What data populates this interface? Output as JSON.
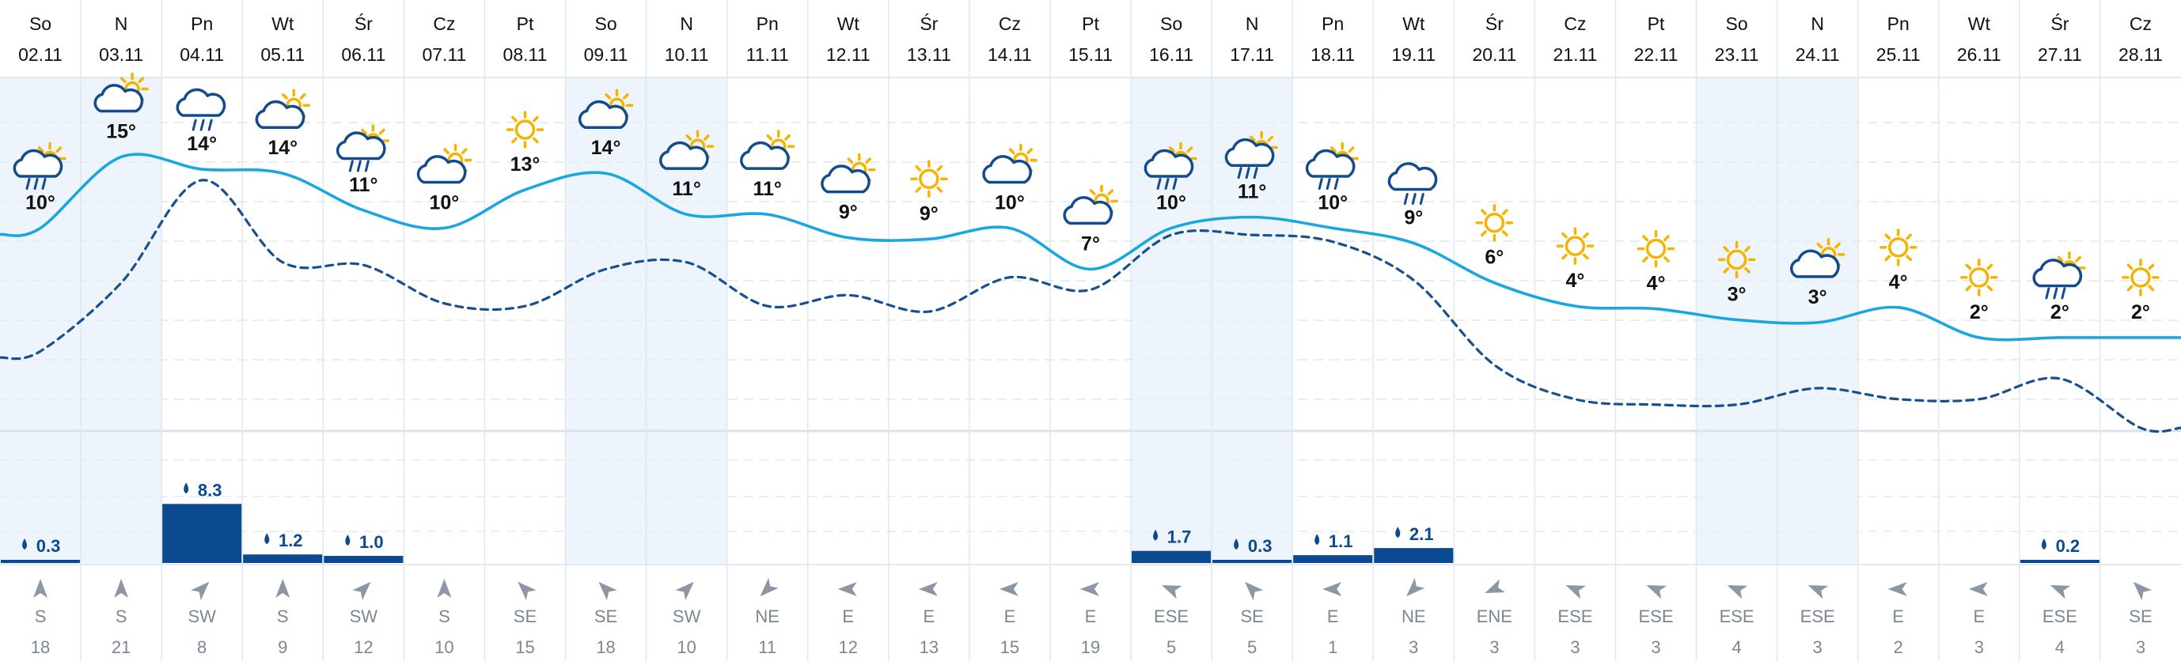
{
  "colors": {
    "accent_line": "#1aa7df",
    "dashed_line": "#174f8f",
    "precip_bar": "#0c4a8f",
    "weekend_band": "#edf4fb",
    "grid": "#dfe8f0",
    "sun": "#f4b400",
    "cloud": "#134b8c",
    "text_dark": "#111111",
    "text_gray": "#7b8794",
    "wind_arrow": "#8c97a3"
  },
  "chart_data": {
    "type": "line",
    "title": "",
    "xlabel": "",
    "ylabel": "",
    "ylim": [
      -8,
      18
    ],
    "grid": true,
    "legend": "none",
    "days": [
      {
        "dow": "So",
        "date": "02.11",
        "weekend": true,
        "icon": "sun-cloud-rain-icon",
        "temp_label": "10°",
        "wind_dir": "S",
        "wind_speed": "18",
        "precip": "0.3"
      },
      {
        "dow": "N",
        "date": "03.11",
        "weekend": true,
        "icon": "cloud-sun-icon",
        "temp_label": "15°",
        "wind_dir": "S",
        "wind_speed": "21",
        "precip": null
      },
      {
        "dow": "Pn",
        "date": "04.11",
        "weekend": false,
        "icon": "cloud-rain-icon",
        "temp_label": "14°",
        "wind_dir": "SW",
        "wind_speed": "8",
        "precip": "8.3"
      },
      {
        "dow": "Wt",
        "date": "05.11",
        "weekend": false,
        "icon": "cloud-sun-icon",
        "temp_label": "14°",
        "wind_dir": "S",
        "wind_speed": "9",
        "precip": "1.2"
      },
      {
        "dow": "Śr",
        "date": "06.11",
        "weekend": false,
        "icon": "sun-cloud-rain-icon",
        "temp_label": "11°",
        "wind_dir": "SW",
        "wind_speed": "12",
        "precip": "1.0"
      },
      {
        "dow": "Cz",
        "date": "07.11",
        "weekend": false,
        "icon": "cloud-sun-icon",
        "temp_label": "10°",
        "wind_dir": "S",
        "wind_speed": "10",
        "precip": null
      },
      {
        "dow": "Pt",
        "date": "08.11",
        "weekend": false,
        "icon": "sun-icon",
        "temp_label": "13°",
        "wind_dir": "SE",
        "wind_speed": "15",
        "precip": null
      },
      {
        "dow": "So",
        "date": "09.11",
        "weekend": true,
        "icon": "cloud-sun-icon",
        "temp_label": "14°",
        "wind_dir": "SE",
        "wind_speed": "18",
        "precip": null
      },
      {
        "dow": "N",
        "date": "10.11",
        "weekend": true,
        "icon": "cloud-sun-icon",
        "temp_label": "11°",
        "wind_dir": "SW",
        "wind_speed": "10",
        "precip": null
      },
      {
        "dow": "Pn",
        "date": "11.11",
        "weekend": false,
        "icon": "cloud-sun-icon",
        "temp_label": "11°",
        "wind_dir": "NE",
        "wind_speed": "11",
        "precip": null
      },
      {
        "dow": "Wt",
        "date": "12.11",
        "weekend": false,
        "icon": "cloud-sun-icon",
        "temp_label": "9°",
        "wind_dir": "E",
        "wind_speed": "12",
        "precip": null
      },
      {
        "dow": "Śr",
        "date": "13.11",
        "weekend": false,
        "icon": "sun-icon",
        "temp_label": "9°",
        "wind_dir": "E",
        "wind_speed": "13",
        "precip": null
      },
      {
        "dow": "Cz",
        "date": "14.11",
        "weekend": false,
        "icon": "cloud-sun-icon",
        "temp_label": "10°",
        "wind_dir": "E",
        "wind_speed": "15",
        "precip": null
      },
      {
        "dow": "Pt",
        "date": "15.11",
        "weekend": false,
        "icon": "cloud-sun-icon",
        "temp_label": "7°",
        "wind_dir": "E",
        "wind_speed": "19",
        "precip": null
      },
      {
        "dow": "So",
        "date": "16.11",
        "weekend": true,
        "icon": "sun-cloud-rain-icon",
        "temp_label": "10°",
        "wind_dir": "ESE",
        "wind_speed": "5",
        "precip": "1.7"
      },
      {
        "dow": "N",
        "date": "17.11",
        "weekend": true,
        "icon": "sun-cloud-rain-icon",
        "temp_label": "11°",
        "wind_dir": "SE",
        "wind_speed": "5",
        "precip": "0.3"
      },
      {
        "dow": "Pn",
        "date": "18.11",
        "weekend": false,
        "icon": "sun-cloud-rain-icon",
        "temp_label": "10°",
        "wind_dir": "E",
        "wind_speed": "1",
        "precip": "1.1"
      },
      {
        "dow": "Wt",
        "date": "19.11",
        "weekend": false,
        "icon": "cloud-rain-icon",
        "temp_label": "9°",
        "wind_dir": "NE",
        "wind_speed": "3",
        "precip": "2.1"
      },
      {
        "dow": "Śr",
        "date": "20.11",
        "weekend": false,
        "icon": "sun-icon",
        "temp_label": "6°",
        "wind_dir": "ENE",
        "wind_speed": "3",
        "precip": null
      },
      {
        "dow": "Cz",
        "date": "21.11",
        "weekend": false,
        "icon": "sun-icon",
        "temp_label": "4°",
        "wind_dir": "ESE",
        "wind_speed": "3",
        "precip": null
      },
      {
        "dow": "Pt",
        "date": "22.11",
        "weekend": false,
        "icon": "sun-icon",
        "temp_label": "4°",
        "wind_dir": "ESE",
        "wind_speed": "3",
        "precip": null
      },
      {
        "dow": "So",
        "date": "23.11",
        "weekend": true,
        "icon": "sun-icon",
        "temp_label": "3°",
        "wind_dir": "ESE",
        "wind_speed": "4",
        "precip": null
      },
      {
        "dow": "N",
        "date": "24.11",
        "weekend": true,
        "icon": "cloud-sun-icon",
        "temp_label": "3°",
        "wind_dir": "ESE",
        "wind_speed": "3",
        "precip": null
      },
      {
        "dow": "Pn",
        "date": "25.11",
        "weekend": false,
        "icon": "sun-icon",
        "temp_label": "4°",
        "wind_dir": "E",
        "wind_speed": "2",
        "precip": null
      },
      {
        "dow": "Wt",
        "date": "26.11",
        "weekend": false,
        "icon": "sun-icon",
        "temp_label": "2°",
        "wind_dir": "E",
        "wind_speed": "3",
        "precip": null
      },
      {
        "dow": "Śr",
        "date": "27.11",
        "weekend": false,
        "icon": "sun-cloud-rain-icon",
        "temp_label": "2°",
        "wind_dir": "ESE",
        "wind_speed": "4",
        "precip": "0.2"
      },
      {
        "dow": "Cz",
        "date": "28.11",
        "weekend": false,
        "icon": "sun-icon",
        "temp_label": "2°",
        "wind_dir": "SE",
        "wind_speed": "3",
        "precip": null
      }
    ],
    "series": [
      {
        "style": "solid",
        "values": [
          10.0,
          15.2,
          14.3,
          14.0,
          11.3,
          10.0,
          12.8,
          14.0,
          11.0,
          11.0,
          9.3,
          9.2,
          10.0,
          7.0,
          10.0,
          10.8,
          10.0,
          8.9,
          6.0,
          4.3,
          4.1,
          3.3,
          3.1,
          4.2,
          2.0,
          2.0,
          2.0
        ]
      },
      {
        "style": "dashed",
        "values": [
          1.0,
          6.0,
          13.5,
          7.5,
          7.3,
          4.5,
          4.3,
          7.0,
          7.5,
          4.3,
          5.1,
          3.9,
          6.4,
          5.5,
          9.5,
          9.5,
          9.0,
          6.2,
          0.0,
          -2.5,
          -2.9,
          -2.9,
          -1.7,
          -2.5,
          -2.5,
          -1.0,
          -4.6
        ]
      }
    ]
  }
}
